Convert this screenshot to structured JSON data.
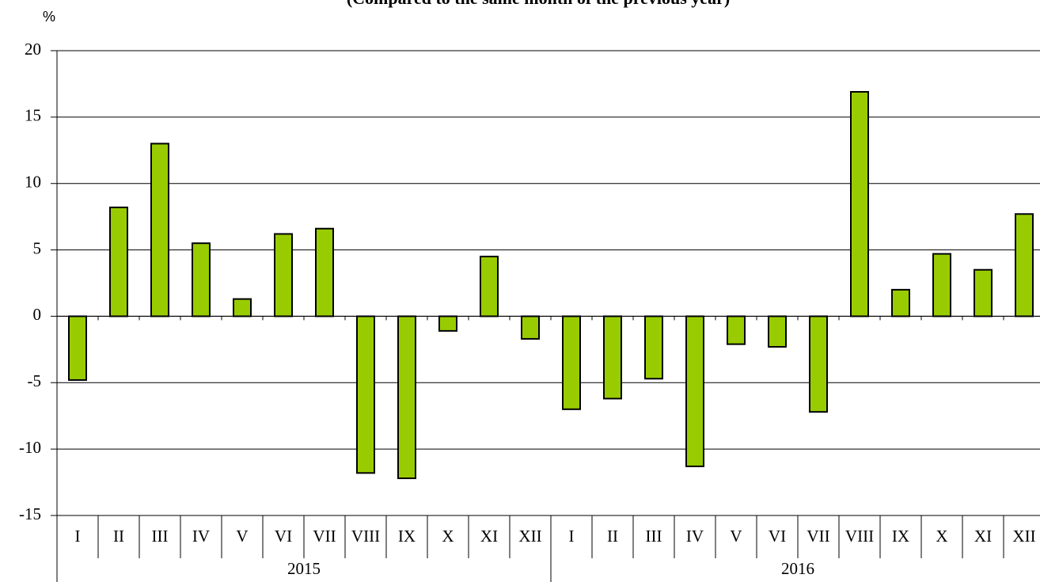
{
  "chart_data": {
    "type": "bar",
    "title": "(Compared to the same month of the previous year)",
    "y_unit": "%",
    "categories": [
      "I",
      "II",
      "III",
      "IV",
      "V",
      "VI",
      "VII",
      "VIII",
      "IX",
      "X",
      "XI",
      "XII",
      "I",
      "II",
      "III",
      "IV",
      "V",
      "VI",
      "VII",
      "VIII",
      "IX",
      "X",
      "XI",
      "XII"
    ],
    "groups": [
      "2015",
      "2016"
    ],
    "values": [
      -4.8,
      8.2,
      13.0,
      5.5,
      1.3,
      6.2,
      6.6,
      -11.8,
      -12.2,
      -1.1,
      4.5,
      -1.7,
      -7.0,
      -6.2,
      -4.7,
      -11.3,
      -2.1,
      -2.3,
      -7.2,
      16.9,
      2.0,
      4.7,
      3.5,
      7.7
    ],
    "color": "#99cc00",
    "ylim": [
      -15,
      20
    ],
    "yticks": [
      -15,
      -10,
      -5,
      0,
      5,
      10,
      15,
      20
    ],
    "grid": true
  }
}
